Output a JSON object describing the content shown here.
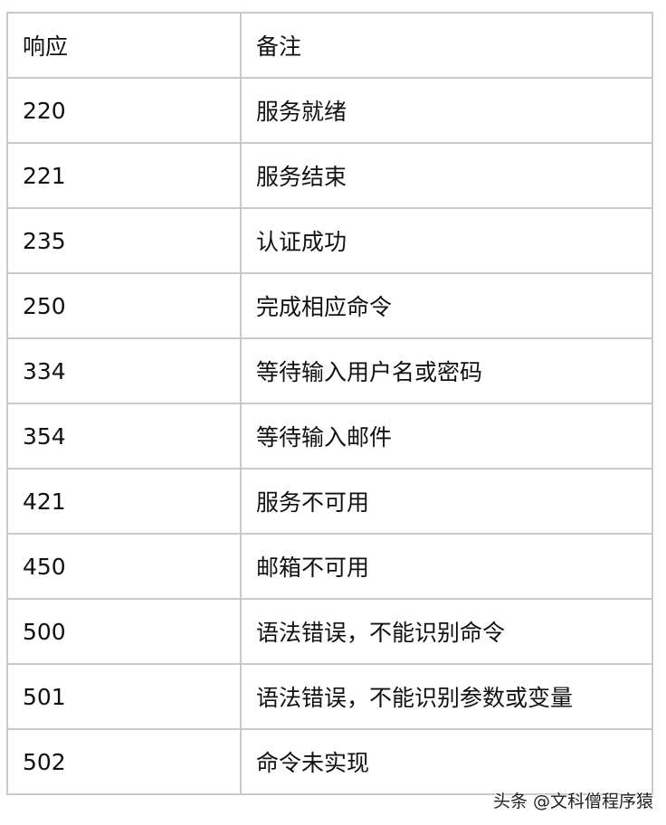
{
  "table": {
    "headers": [
      "响应",
      "备注"
    ],
    "rows": [
      [
        "220",
        "服务就绪"
      ],
      [
        "221",
        "服务结束"
      ],
      [
        "235",
        "认证成功"
      ],
      [
        "250",
        "完成相应命令"
      ],
      [
        "334",
        "等待输入用户名或密码"
      ],
      [
        "354",
        "等待输入邮件"
      ],
      [
        "421",
        "服务不可用"
      ],
      [
        "450",
        "邮箱不可用"
      ],
      [
        "500",
        "语法错误，不能识别命令"
      ],
      [
        "501",
        "语法错误，不能识别参数或变量"
      ],
      [
        "502",
        "命令未实现"
      ]
    ]
  },
  "watermark": "头条 @文科僧程序猿"
}
